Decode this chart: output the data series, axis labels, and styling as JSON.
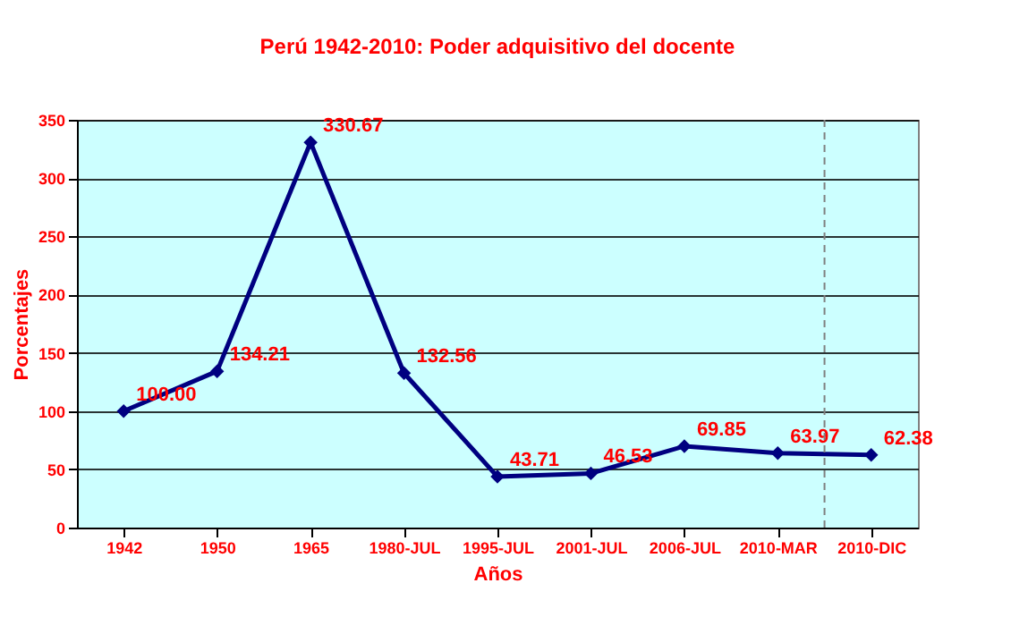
{
  "chart_data": {
    "type": "line",
    "title": "Perú 1942-2010: Poder adquisitivo del docente",
    "xlabel": "Años",
    "ylabel": "Porcentajes",
    "categories": [
      "1942",
      "1950",
      "1965",
      "1980-JUL",
      "1995-JUL",
      "2001-JUL",
      "2006-JUL",
      "2010-MAR",
      "2010-DIC"
    ],
    "series": [
      {
        "color": "#000080",
        "values": [
          100.0,
          134.21,
          330.67,
          132.56,
          43.71,
          46.53,
          69.85,
          63.97,
          62.38
        ],
        "value_labels": [
          "100.00",
          "134.21",
          "330.67",
          "132.56",
          "43.71",
          "46.53",
          "69.85",
          "63.97",
          "62.38"
        ]
      }
    ],
    "ylim": [
      0,
      350
    ],
    "yticks": [
      0,
      50,
      100,
      150,
      200,
      250,
      300,
      350
    ],
    "grid": "y",
    "marker": "diamond",
    "line_style": "solid",
    "data_labels": true,
    "ref_lines": [
      {
        "axis": "x",
        "value": "2010-DIC",
        "line_style": "dashed",
        "color": "#808080"
      }
    ]
  }
}
